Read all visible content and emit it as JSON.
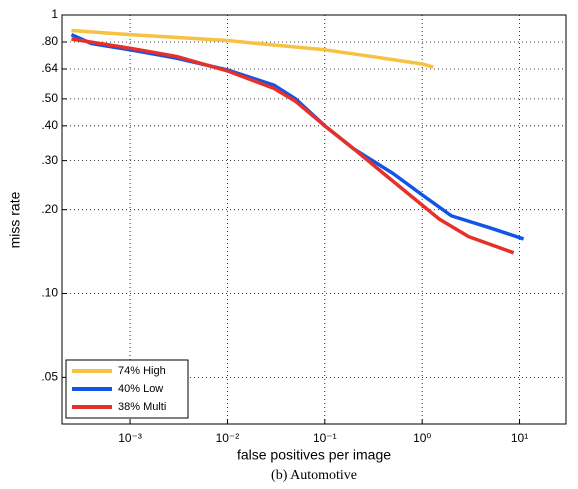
{
  "chart_data": {
    "type": "line",
    "caption": "(b)  Automotive",
    "xlabel": "false positives per image",
    "ylabel": "miss rate",
    "xscale": "log",
    "yscale": "log",
    "grid": true,
    "legend": "lower left",
    "xlim": [
      0.0002,
      30
    ],
    "ylim": [
      0.034,
      1
    ],
    "xticks": [
      {
        "value": 0.001,
        "label": "10⁻³"
      },
      {
        "value": 0.01,
        "label": "10⁻²"
      },
      {
        "value": 0.1,
        "label": "10⁻¹"
      },
      {
        "value": 1,
        "label": "10⁰"
      },
      {
        "value": 10,
        "label": "10¹"
      }
    ],
    "yticks": [
      1,
      {
        "value": 0.8,
        "label": ".80"
      },
      {
        "value": 0.64,
        "label": ".64"
      },
      {
        "value": 0.5,
        "label": ".50"
      },
      {
        "value": 0.4,
        "label": ".40"
      },
      {
        "value": 0.3,
        "label": ".30"
      },
      {
        "value": 0.2,
        "label": ".20"
      },
      {
        "value": 0.1,
        "label": ".10"
      },
      {
        "value": 0.05,
        "label": ".05"
      }
    ],
    "series": [
      {
        "name": "74% High",
        "color": "#f5c242",
        "x": [
          0.00025,
          0.001,
          0.01,
          0.03,
          0.1,
          0.3,
          1,
          1.3
        ],
        "values": [
          0.88,
          0.85,
          0.81,
          0.78,
          0.75,
          0.71,
          0.667,
          0.65
        ]
      },
      {
        "name": "40% Low",
        "color": "#1155e6",
        "x": [
          0.00025,
          0.0004,
          0.001,
          0.003,
          0.01,
          0.03,
          0.05,
          0.1,
          0.2,
          0.5,
          1,
          2,
          5,
          11
        ],
        "values": [
          0.85,
          0.79,
          0.75,
          0.7,
          0.635,
          0.56,
          0.5,
          0.4,
          0.33,
          0.27,
          0.226,
          0.19,
          0.172,
          0.157
        ]
      },
      {
        "name": "38% Multi",
        "color": "#e8302a",
        "x": [
          0.00025,
          0.001,
          0.003,
          0.01,
          0.03,
          0.05,
          0.1,
          0.2,
          0.4,
          0.7,
          1.5,
          3,
          8.7
        ],
        "values": [
          0.82,
          0.76,
          0.71,
          0.63,
          0.545,
          0.49,
          0.4,
          0.33,
          0.27,
          0.23,
          0.185,
          0.16,
          0.14
        ]
      }
    ]
  }
}
